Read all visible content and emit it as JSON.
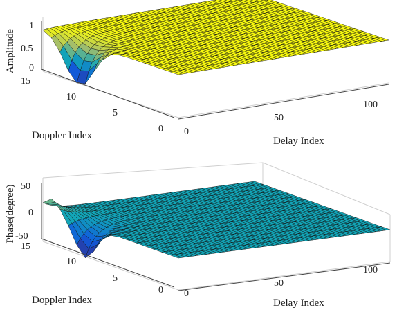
{
  "chart_data": [
    {
      "type": "surface",
      "title": "",
      "xlabel": "Delay Index",
      "ylabel": "Doppler Index",
      "zlabel": "Amplitude",
      "xlim": [
        0,
        128
      ],
      "ylim": [
        0,
        15
      ],
      "zlim": [
        0,
        1
      ],
      "xticks": [
        "0",
        "50",
        "100"
      ],
      "yticks": [
        "0",
        "5",
        "10",
        "15"
      ],
      "zticks": [
        "0",
        "0.5",
        "1"
      ],
      "grid": true,
      "colormap": "parula",
      "description_points": {
        "plateau_value": 1,
        "dip": {
          "delay_index": 0,
          "doppler_index_range": [
            8,
            14
          ],
          "min_value": 0
        }
      }
    },
    {
      "type": "surface",
      "title": "",
      "xlabel": "Delay Index",
      "ylabel": "Doppler Index",
      "zlabel": "Phase(degree)",
      "xlim": [
        0,
        128
      ],
      "ylim": [
        0,
        15
      ],
      "zlim": [
        -50,
        50
      ],
      "xticks": [
        "0",
        "50",
        "100"
      ],
      "yticks": [
        "0",
        "5",
        "10",
        "15"
      ],
      "zticks": [
        "-50",
        "0",
        "50"
      ],
      "grid": true,
      "colormap": "parula",
      "description_points": {
        "plateau_value": 0,
        "peak": {
          "delay_index": 0,
          "doppler_index_range": [
            13,
            15
          ],
          "max_value": 20
        },
        "dip": {
          "delay_index": 0,
          "doppler_index_range": [
            9,
            12
          ],
          "min_value": -50
        }
      }
    }
  ]
}
